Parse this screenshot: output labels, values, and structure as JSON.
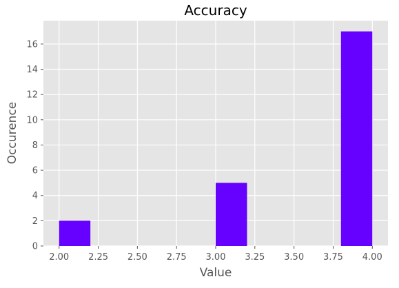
{
  "chart_data": {
    "type": "bar",
    "title": "Accuracy",
    "xlabel": "Value",
    "ylabel": "Occurence",
    "xlim": [
      1.9,
      4.1
    ],
    "ylim": [
      0,
      17.85
    ],
    "xticks": [
      2.0,
      2.25,
      2.5,
      2.75,
      3.0,
      3.25,
      3.5,
      3.75,
      4.0
    ],
    "xtick_labels": [
      "2.00",
      "2.25",
      "2.50",
      "2.75",
      "3.00",
      "3.25",
      "3.50",
      "3.75",
      "4.00"
    ],
    "yticks": [
      0,
      2,
      4,
      6,
      8,
      10,
      12,
      14,
      16
    ],
    "ytick_labels": [
      "0",
      "2",
      "4",
      "6",
      "8",
      "10",
      "12",
      "14",
      "16"
    ],
    "grid": true,
    "bins": [
      {
        "start": 2.0,
        "end": 2.2,
        "value": 2
      },
      {
        "start": 3.0,
        "end": 3.2,
        "value": 5
      },
      {
        "start": 3.8,
        "end": 4.0,
        "value": 17
      }
    ],
    "colors": {
      "bar": "#6600ff",
      "plot_background": "#e5e5e5",
      "grid": "#ffffff",
      "text": "#555555"
    }
  }
}
